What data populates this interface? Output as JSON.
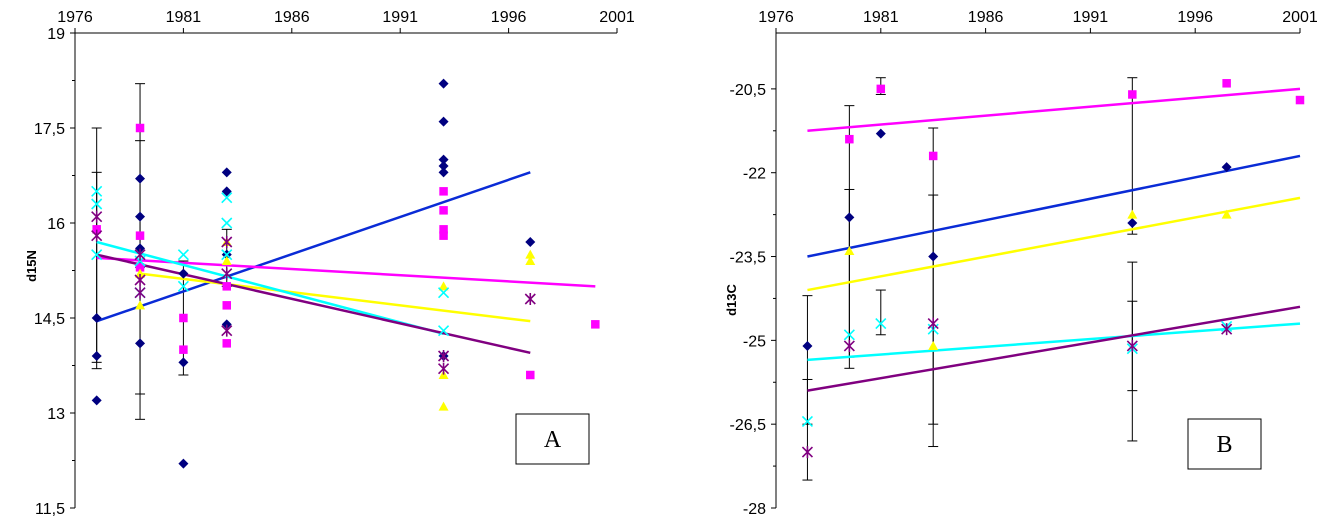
{
  "chart_data": [
    {
      "type": "scatter",
      "panel_label": "A",
      "ylabel": "d15N",
      "xlim": [
        1976,
        2001
      ],
      "ylim": [
        11.5,
        19
      ],
      "xticks": [
        "1976",
        "1981",
        "1986",
        "1991",
        "1996",
        "2001"
      ],
      "yticks": [
        "11,5",
        "13",
        "14,5",
        "16",
        "17,5",
        "19"
      ],
      "series": [
        {
          "color": "#000080",
          "marker": "diamond",
          "points": [
            [
              1977,
              14.5
            ],
            [
              1977,
              13.9
            ],
            [
              1977,
              13.2
            ],
            [
              1979,
              16.7
            ],
            [
              1979,
              16.1
            ],
            [
              1979,
              15.6
            ],
            [
              1979,
              15.3
            ],
            [
              1979,
              14.1
            ],
            [
              1981,
              15.2
            ],
            [
              1981,
              13.8
            ],
            [
              1981,
              12.2
            ],
            [
              1983,
              16.8
            ],
            [
              1983,
              16.5
            ],
            [
              1983,
              15.5
            ],
            [
              1983,
              14.4
            ],
            [
              1993,
              18.2
            ],
            [
              1993,
              17.6
            ],
            [
              1993,
              17.0
            ],
            [
              1993,
              16.9
            ],
            [
              1993,
              16.8
            ],
            [
              1993,
              13.9
            ],
            [
              1997,
              15.7
            ]
          ],
          "trend": [
            [
              1977,
              14.45
            ],
            [
              1997,
              16.8
            ]
          ],
          "trend_color": "#0a2bd6"
        },
        {
          "color": "#ff00ff",
          "marker": "square",
          "points": [
            [
              1977,
              15.9
            ],
            [
              1979,
              17.5
            ],
            [
              1979,
              15.8
            ],
            [
              1979,
              15.3
            ],
            [
              1981,
              14.5
            ],
            [
              1981,
              14.0
            ],
            [
              1983,
              15.0
            ],
            [
              1983,
              14.7
            ],
            [
              1983,
              14.1
            ],
            [
              1993,
              16.5
            ],
            [
              1993,
              16.2
            ],
            [
              1993,
              15.9
            ],
            [
              1993,
              15.8
            ],
            [
              1997,
              13.6
            ],
            [
              2000,
              14.4
            ]
          ],
          "trend": [
            [
              1977,
              15.45
            ],
            [
              2000,
              15.0
            ]
          ],
          "trend_color": "#ff00ff"
        },
        {
          "color": "#ffff00",
          "marker": "triangle",
          "points": [
            [
              1979,
              15.2
            ],
            [
              1979,
              14.7
            ],
            [
              1983,
              15.4
            ],
            [
              1983,
              15.7
            ],
            [
              1993,
              13.6
            ],
            [
              1993,
              13.1
            ],
            [
              1993,
              15.0
            ],
            [
              1997,
              15.5
            ],
            [
              1997,
              15.4
            ]
          ],
          "trend": [
            [
              1979,
              15.2
            ],
            [
              1997,
              14.45
            ]
          ],
          "trend_color": "#ffff00"
        },
        {
          "color": "#00ffff",
          "marker": "x",
          "points": [
            [
              1977,
              16.5
            ],
            [
              1977,
              16.3
            ],
            [
              1977,
              15.5
            ],
            [
              1979,
              15.4
            ],
            [
              1979,
              14.9
            ],
            [
              1981,
              15.5
            ],
            [
              1981,
              15.0
            ],
            [
              1983,
              16.4
            ],
            [
              1983,
              16.0
            ],
            [
              1983,
              15.5
            ],
            [
              1993,
              14.3
            ],
            [
              1993,
              14.9
            ]
          ],
          "trend": [
            [
              1977,
              15.7
            ],
            [
              1993,
              14.25
            ]
          ],
          "trend_color": "#00ffff"
        },
        {
          "color": "#800080",
          "marker": "star",
          "points": [
            [
              1977,
              16.1
            ],
            [
              1977,
              15.8
            ],
            [
              1979,
              15.5
            ],
            [
              1979,
              15.1
            ],
            [
              1979,
              14.9
            ],
            [
              1983,
              15.7
            ],
            [
              1983,
              15.2
            ],
            [
              1983,
              14.3
            ],
            [
              1993,
              13.9
            ],
            [
              1993,
              13.7
            ],
            [
              1997,
              14.8
            ]
          ],
          "trend": [
            [
              1977,
              15.5
            ],
            [
              1997,
              13.95
            ]
          ],
          "trend_color": "#800080"
        }
      ],
      "error_bars": [
        {
          "x": 1977,
          "lo": 13.7,
          "hi": 17.5
        },
        {
          "x": 1977,
          "lo": 13.8,
          "hi": 16.8
        },
        {
          "x": 1979,
          "lo": 12.9,
          "hi": 18.2
        },
        {
          "x": 1979,
          "lo": 13.3,
          "hi": 17.3
        },
        {
          "x": 1981,
          "lo": 13.6,
          "hi": 15.4
        },
        {
          "x": 1983,
          "lo": 15.0,
          "hi": 15.9
        }
      ]
    },
    {
      "type": "scatter",
      "panel_label": "B",
      "ylabel": "d13C",
      "xlim": [
        1976,
        2001
      ],
      "ylim": [
        -28,
        -19.5
      ],
      "xticks": [
        "1976",
        "1981",
        "1986",
        "1991",
        "1996",
        "2001"
      ],
      "yticks": [
        "-20,5",
        "-22",
        "-23,5",
        "-25",
        "-26,5",
        "-28"
      ],
      "series": [
        {
          "color": "#000080",
          "marker": "diamond",
          "points": [
            [
              1977.5,
              -25.1
            ],
            [
              1979.5,
              -22.8
            ],
            [
              1981,
              -21.3
            ],
            [
              1983.5,
              -23.5
            ],
            [
              1993,
              -22.9
            ],
            [
              1997.5,
              -21.9
            ]
          ],
          "trend": [
            [
              1977.5,
              -23.5
            ],
            [
              2001,
              -21.7
            ]
          ],
          "trend_color": "#0a2bd6"
        },
        {
          "color": "#ff00ff",
          "marker": "square",
          "points": [
            [
              1979.5,
              -21.4
            ],
            [
              1981,
              -20.5
            ],
            [
              1983.5,
              -21.7
            ],
            [
              1993,
              -20.6
            ],
            [
              1997.5,
              -20.4
            ],
            [
              2001,
              -20.7
            ]
          ],
          "trend": [
            [
              1977.5,
              -21.25
            ],
            [
              2001,
              -20.5
            ]
          ],
          "trend_color": "#ff00ff"
        },
        {
          "color": "#ffff00",
          "marker": "triangle",
          "points": [
            [
              1979.5,
              -23.4
            ],
            [
              1983.5,
              -25.1
            ],
            [
              1993,
              -22.75
            ],
            [
              1997.5,
              -22.75
            ]
          ],
          "trend": [
            [
              1977.5,
              -24.1
            ],
            [
              2001,
              -22.45
            ]
          ],
          "trend_color": "#ffff00"
        },
        {
          "color": "#00ffff",
          "marker": "x",
          "points": [
            [
              1977.5,
              -26.45
            ],
            [
              1979.5,
              -24.9
            ],
            [
              1981,
              -24.7
            ],
            [
              1983.5,
              -24.8
            ],
            [
              1993,
              -25.15
            ],
            [
              1997.5,
              -24.75
            ]
          ],
          "trend": [
            [
              1977.5,
              -25.35
            ],
            [
              2001,
              -24.7
            ]
          ],
          "trend_color": "#00ffff"
        },
        {
          "color": "#800080",
          "marker": "star",
          "points": [
            [
              1977.5,
              -27.0
            ],
            [
              1979.5,
              -25.1
            ],
            [
              1983.5,
              -24.7
            ],
            [
              1993,
              -25.1
            ],
            [
              1997.5,
              -24.8
            ]
          ],
          "trend": [
            [
              1977.5,
              -25.9
            ],
            [
              2001,
              -24.4
            ]
          ],
          "trend_color": "#800080"
        }
      ],
      "error_bars": [
        {
          "x": 1977.5,
          "lo": -27.5,
          "hi": -24.2
        },
        {
          "x": 1977.5,
          "lo": -26.5,
          "hi": -25.7
        },
        {
          "x": 1979.5,
          "lo": -25.5,
          "hi": -20.8
        },
        {
          "x": 1979.5,
          "lo": -25.3,
          "hi": -22.3
        },
        {
          "x": 1981,
          "lo": -20.6,
          "hi": -20.3
        },
        {
          "x": 1981,
          "lo": -24.9,
          "hi": -24.1
        },
        {
          "x": 1983.5,
          "lo": -26.9,
          "hi": -21.2
        },
        {
          "x": 1983.5,
          "lo": -26.5,
          "hi": -22.4
        },
        {
          "x": 1993,
          "lo": -26.8,
          "hi": -23.6
        },
        {
          "x": 1993,
          "lo": -25.9,
          "hi": -24.3
        },
        {
          "x": 1993,
          "lo": -23.1,
          "hi": -20.3
        }
      ]
    }
  ]
}
